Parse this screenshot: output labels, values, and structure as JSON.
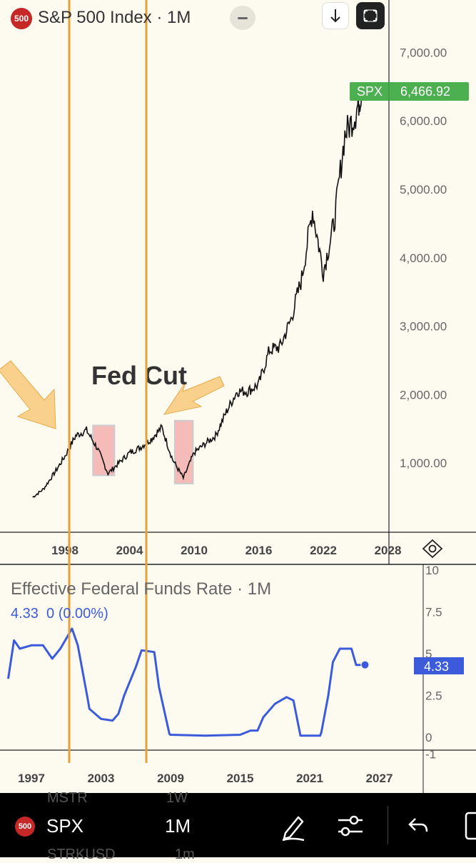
{
  "header": {
    "badge": "500",
    "title": "S&P 500 Index",
    "dot": "·",
    "interval": "1M"
  },
  "spx_chart": {
    "price_tag_label": "SPX",
    "price_tag_value": "6,466.92",
    "price_tag_color": "#4caf50",
    "y_ticks": [
      "7,000.00",
      "6,000.00",
      "5,000.00",
      "4,000.00",
      "3,000.00",
      "2,000.00",
      "1,000.00"
    ],
    "x_ticks": [
      "1998",
      "2004",
      "2010",
      "2016",
      "2022",
      "2028"
    ],
    "annotation": "Fed Cut",
    "highlight_color": "#f2a5a5",
    "cut_line_color": "#e8a03a"
  },
  "rate_chart": {
    "title": "Effective Federal Funds Rate",
    "dot": "·",
    "interval": "1M",
    "value_line": "4.33  0 (0.00%)",
    "value_tag": "4.33",
    "y_ticks": [
      "10",
      "7.5",
      "5",
      "2.5",
      "0",
      "-1"
    ],
    "x_ticks": [
      "1997",
      "2003",
      "2009",
      "2015",
      "2021",
      "2027"
    ],
    "line_color": "#3b5bdb"
  },
  "bottom_bar": {
    "ghost_top_left": "MSTR",
    "ghost_top_right": "1W",
    "badge": "500",
    "symbol": "SPX",
    "interval": "1M",
    "ghost_bottom_left": "STRKUSD",
    "ghost_bottom_right": "1m"
  },
  "chart_data": [
    {
      "type": "line",
      "title": "S&P 500 Index",
      "series": [
        {
          "name": "SPX",
          "x": [
            1995,
            1996,
            1997,
            1998,
            1999,
            2000,
            2001,
            2002,
            2003,
            2004,
            2005,
            2006,
            2007,
            2008,
            2009,
            2010,
            2011,
            2012,
            2013,
            2014,
            2015,
            2016,
            2017,
            2018,
            2019,
            2020,
            2021,
            2022,
            2023,
            2024,
            2025,
            2025.6
          ],
          "values": [
            500,
            620,
            850,
            1100,
            1400,
            1480,
            1220,
            850,
            1000,
            1150,
            1230,
            1350,
            1520,
            1050,
            780,
            1150,
            1280,
            1400,
            1750,
            2050,
            2050,
            2150,
            2650,
            2700,
            3100,
            3700,
            4700,
            3800,
            4500,
            5800,
            6100,
            6466.92
          ]
        }
      ],
      "ylim": [
        0,
        7500
      ],
      "x_ticks": [
        "1998",
        "2004",
        "2010",
        "2016",
        "2022",
        "2028"
      ],
      "annotations": [
        "Fed Cut"
      ]
    },
    {
      "type": "line",
      "title": "Effective Federal Funds Rate",
      "series": [
        {
          "name": "Effective Federal Funds Rate",
          "x": [
            1995,
            1995.5,
            1996,
            1997,
            1998,
            1998.8,
            1999.5,
            2000.5,
            2001,
            2001.8,
            2002,
            2003,
            2004,
            2004.5,
            2005,
            2006,
            2006.5,
            2007.6,
            2008,
            2008.9,
            2009,
            2012,
            2015,
            2015.9,
            2016.5,
            2017,
            2018,
            2019,
            2019.6,
            2020.2,
            2021,
            2021.9,
            2022,
            2022.6,
            2023,
            2023.6,
            2024,
            2024.6,
            2025,
            2025.4
          ],
          "values": [
            3.5,
            5.8,
            5.3,
            5.5,
            5.5,
            4.7,
            5.3,
            6.5,
            5.5,
            2.5,
            1.7,
            1.1,
            1.0,
            1.4,
            2.5,
            4.2,
            5.2,
            5.1,
            3.0,
            0.2,
            0.15,
            0.1,
            0.15,
            0.4,
            0.4,
            1.2,
            2.0,
            2.4,
            2.2,
            0.1,
            0.1,
            0.1,
            0.3,
            2.5,
            4.5,
            5.3,
            5.3,
            5.3,
            4.33,
            4.33
          ]
        }
      ],
      "ylim": [
        0,
        10
      ],
      "x_ticks": [
        "1997",
        "2003",
        "2009",
        "2015",
        "2021",
        "2027"
      ]
    }
  ]
}
